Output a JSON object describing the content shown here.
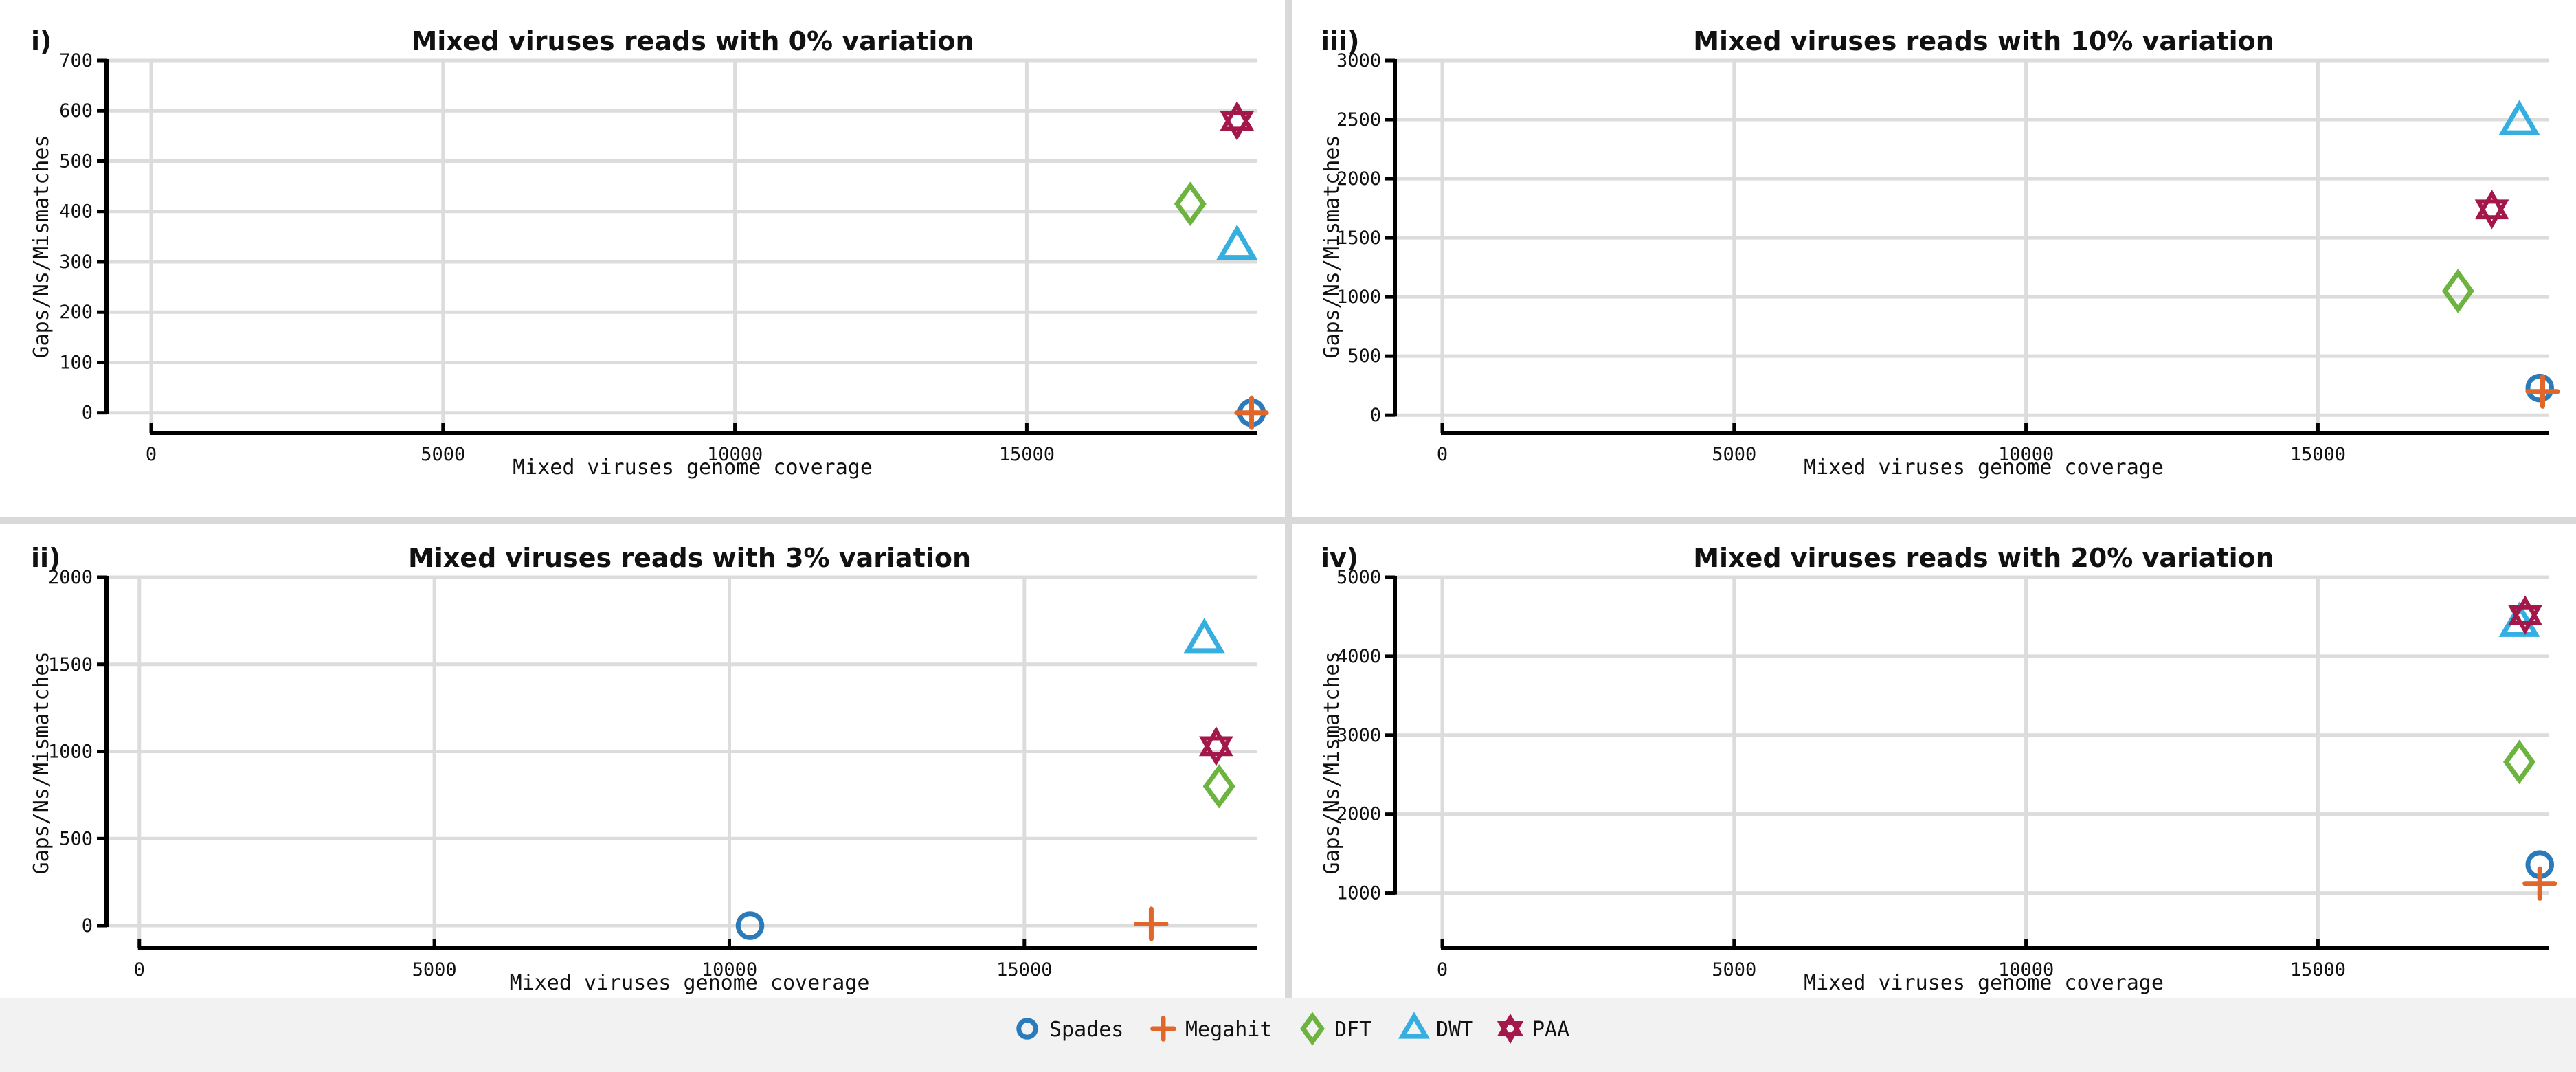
{
  "chart_data": [
    {
      "panel": "i)",
      "type": "scatter",
      "title": "Mixed viruses reads with 0% variation",
      "xlabel": "Mixed viruses genome coverage",
      "ylabel": "Gaps/Ns/Mismatches",
      "xlim": [
        -400,
        18950
      ],
      "ylim": [
        -40,
        700
      ],
      "xticks": [
        0,
        5000,
        10000,
        15000
      ],
      "yticks": [
        0,
        100,
        200,
        300,
        400,
        500,
        600,
        700
      ],
      "grid": true,
      "series": [
        {
          "name": "Spades",
          "x": [
            18850
          ],
          "y": [
            0
          ]
        },
        {
          "name": "Megahit",
          "x": [
            18850
          ],
          "y": [
            0
          ]
        },
        {
          "name": "DFT",
          "x": [
            17800
          ],
          "y": [
            415
          ]
        },
        {
          "name": "DWT",
          "x": [
            18600
          ],
          "y": [
            330
          ]
        },
        {
          "name": "PAA",
          "x": [
            18600
          ],
          "y": [
            580
          ]
        }
      ]
    },
    {
      "panel": "iii)",
      "type": "scatter",
      "title": "Mixed viruses reads with 10% variation",
      "xlabel": "Mixed viruses genome coverage",
      "ylabel": "Gaps/Ns/Mismatches",
      "xlim": [
        -400,
        18950
      ],
      "ylim": [
        -150,
        3000
      ],
      "xticks": [
        0,
        5000,
        10000,
        15000
      ],
      "yticks": [
        0,
        500,
        1000,
        1500,
        2000,
        2500,
        3000
      ],
      "grid": true,
      "series": [
        {
          "name": "Spades",
          "x": [
            18800
          ],
          "y": [
            230
          ]
        },
        {
          "name": "Megahit",
          "x": [
            18850
          ],
          "y": [
            200
          ]
        },
        {
          "name": "DFT",
          "x": [
            17400
          ],
          "y": [
            1050
          ]
        },
        {
          "name": "DWT",
          "x": [
            18450
          ],
          "y": [
            2480
          ]
        },
        {
          "name": "PAA",
          "x": [
            17980
          ],
          "y": [
            1740
          ]
        }
      ]
    },
    {
      "panel": "ii)",
      "type": "scatter",
      "title": "Mixed viruses reads with 3% variation",
      "xlabel": "Mixed viruses genome coverage",
      "ylabel": "Gaps/Ns/Mismatches",
      "xlim": [
        -300,
        18950
      ],
      "ylim": [
        -130,
        2000
      ],
      "xticks": [
        0,
        5000,
        10000,
        15000
      ],
      "yticks": [
        0,
        500,
        1000,
        1500,
        2000
      ],
      "grid": true,
      "series": [
        {
          "name": "Spades",
          "x": [
            10350
          ],
          "y": [
            0
          ]
        },
        {
          "name": "Megahit",
          "x": [
            17150
          ],
          "y": [
            10
          ]
        },
        {
          "name": "DFT",
          "x": [
            18300
          ],
          "y": [
            800
          ]
        },
        {
          "name": "DWT",
          "x": [
            18050
          ],
          "y": [
            1640
          ]
        },
        {
          "name": "PAA",
          "x": [
            18250
          ],
          "y": [
            1030
          ]
        }
      ]
    },
    {
      "panel": "iv)",
      "type": "scatter",
      "title": "Mixed viruses reads with 20% variation",
      "xlabel": "Mixed viruses genome coverage",
      "ylabel": "Gaps/Ns/Mismatches",
      "xlim": [
        -400,
        18950
      ],
      "ylim": [
        300,
        5000
      ],
      "xticks": [
        0,
        5000,
        10000,
        15000
      ],
      "yticks": [
        1000,
        2000,
        3000,
        4000,
        5000
      ],
      "grid": true,
      "series": [
        {
          "name": "Spades",
          "x": [
            18800
          ],
          "y": [
            1360
          ]
        },
        {
          "name": "Megahit",
          "x": [
            18800
          ],
          "y": [
            1120
          ]
        },
        {
          "name": "DFT",
          "x": [
            18450
          ],
          "y": [
            2660
          ]
        },
        {
          "name": "DWT",
          "x": [
            18450
          ],
          "y": [
            4410
          ]
        },
        {
          "name": "PAA",
          "x": [
            18550
          ],
          "y": [
            4520
          ]
        }
      ]
    }
  ],
  "legend": {
    "placement": "bottom-center",
    "items": [
      {
        "name": "Spades",
        "marker": "circle-marker",
        "color": "#2b7bba"
      },
      {
        "name": "Megahit",
        "marker": "plus-marker",
        "color": "#e0662a"
      },
      {
        "name": "DFT",
        "marker": "diamond-marker",
        "color": "#6db33f"
      },
      {
        "name": "DWT",
        "marker": "triangle-marker",
        "color": "#35aee0"
      },
      {
        "name": "PAA",
        "marker": "star-marker",
        "color": "#a3174a"
      }
    ]
  }
}
